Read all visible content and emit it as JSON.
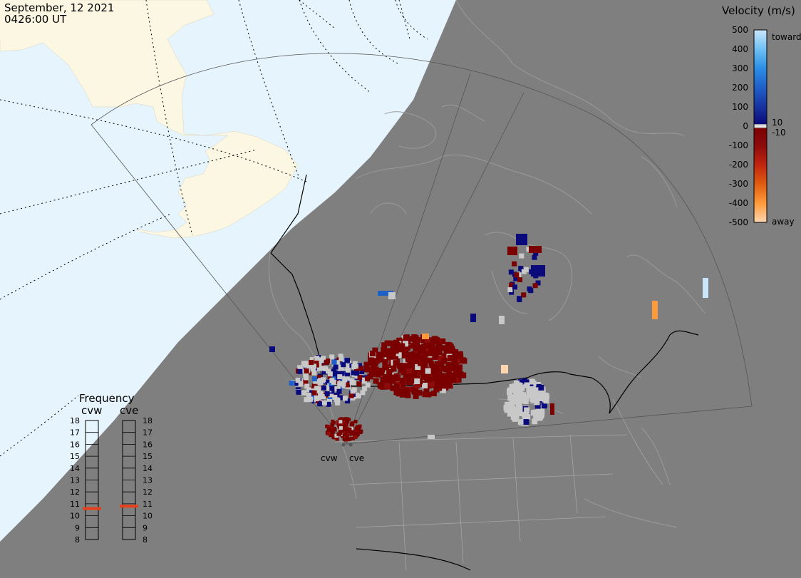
{
  "header": {
    "date": "September, 12 2021",
    "time": "0426:00 UT"
  },
  "colorbar": {
    "title": "Velocity (m/s)",
    "tick_labels": [
      "500",
      "400",
      "300",
      "200",
      "100",
      "0",
      "-100",
      "-200",
      "-300",
      "-400",
      "-500"
    ],
    "tick_values": [
      500,
      400,
      300,
      200,
      100,
      0,
      -100,
      -200,
      -300,
      -400,
      -500
    ],
    "range": [
      -500,
      500
    ],
    "toward_label": "toward",
    "away_label": "away",
    "pos_threshold_label": "10",
    "neg_threshold_label": "-10",
    "colors": {
      "toward_500": "#cbe6fb",
      "toward_400": "#6fc1f3",
      "toward_300": "#2b8ee6",
      "toward_200": "#1f5fc8",
      "toward_100": "#17339f",
      "toward_10": "#0a0a7a",
      "near_zero": "#c8c8c8",
      "away_10": "#7a0000",
      "away_100": "#8c0b0b",
      "away_200": "#c0240f",
      "away_300": "#e05c10",
      "away_400": "#ff9a3a",
      "away_500": "#fdd6b0"
    }
  },
  "frequency_panel": {
    "title": "Frequency",
    "radars": [
      {
        "name": "cvw",
        "frequency_mhz": 10.6
      },
      {
        "name": "cve",
        "frequency_mhz": 10.8
      }
    ],
    "scale_labels": [
      "18",
      "17",
      "16",
      "15",
      "14",
      "13",
      "12",
      "11",
      "10",
      "9",
      "8"
    ],
    "scale_range": [
      8,
      18
    ],
    "marker_color": "#e8401a"
  },
  "radar_sites": [
    {
      "name": "cvw"
    },
    {
      "name": "cve"
    }
  ],
  "map_colors": {
    "ocean_day": "#e6f4fd",
    "land_day": "#fbf7e3",
    "night": "#7f7f7f",
    "coastline_night": "#9a9a9a",
    "country_borders": "#000000"
  }
}
